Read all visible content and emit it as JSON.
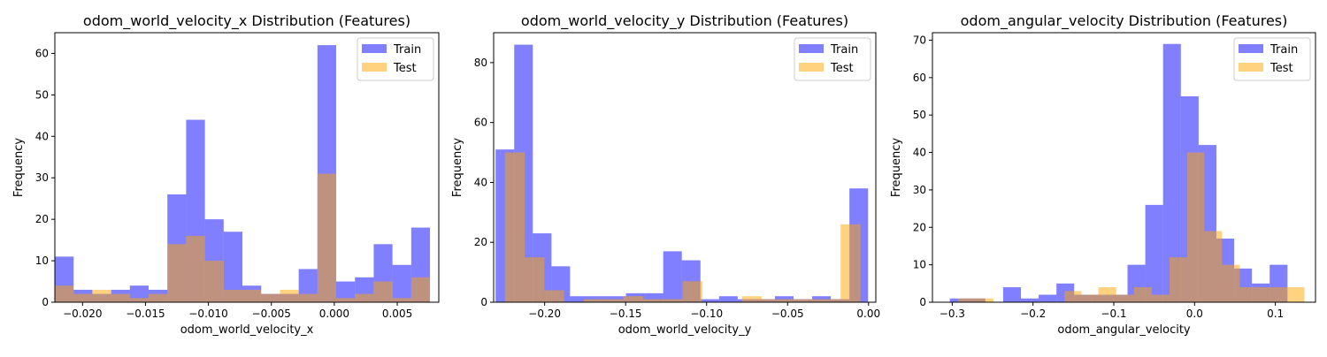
{
  "colors": {
    "train": "#0000ff",
    "test": "#ffa500",
    "train_alpha": 0.5,
    "test_alpha": 0.5
  },
  "chart_data": [
    {
      "type": "bar",
      "title": "odom_world_velocity_x Distribution (Features)",
      "xlabel": "odom_world_velocity_x",
      "ylabel": "Frequency",
      "xlim": [
        -0.0222,
        0.0083
      ],
      "ylim": [
        0,
        65
      ],
      "xticks": [
        -0.02,
        -0.015,
        -0.01,
        -0.005,
        0.0,
        0.005
      ],
      "xtick_labels": [
        "−0.020",
        "−0.015",
        "−0.010",
        "−0.005",
        "0.000",
        "0.005"
      ],
      "yticks": [
        0,
        10,
        20,
        30,
        40,
        50,
        60
      ],
      "legend": {
        "placement": "top-right",
        "entries": [
          "Train",
          "Test"
        ]
      },
      "series": [
        {
          "name": "Train",
          "bins": [
            -0.0222,
            -0.02071,
            -0.01922,
            -0.01773,
            -0.01624,
            -0.01475,
            -0.01326,
            -0.01177,
            -0.01028,
            -0.00879,
            -0.0073,
            -0.00581,
            -0.00432,
            -0.00283,
            -0.00134,
            0.00015,
            0.00164,
            0.00313,
            0.00462,
            0.00611,
            0.0076
          ],
          "values": [
            11,
            3,
            2,
            3,
            4,
            3,
            26,
            44,
            20,
            17,
            4,
            2,
            2,
            8,
            62,
            5,
            6,
            14,
            9,
            18
          ]
        },
        {
          "name": "Test",
          "bins": [
            -0.0222,
            -0.02071,
            -0.01922,
            -0.01773,
            -0.01624,
            -0.01475,
            -0.01326,
            -0.01177,
            -0.01028,
            -0.00879,
            -0.0073,
            -0.00581,
            -0.00432,
            -0.00283,
            -0.00134,
            0.00015,
            0.00164,
            0.00313,
            0.00462,
            0.00611,
            0.0076
          ],
          "values": [
            4,
            2,
            3,
            2,
            1,
            2,
            14,
            16,
            10,
            3,
            3,
            2,
            3,
            2,
            31,
            1,
            2,
            5,
            1,
            6
          ]
        }
      ]
    },
    {
      "type": "bar",
      "title": "odom_world_velocity_y Distribution (Features)",
      "xlabel": "odom_world_velocity_y",
      "ylabel": "Frequency",
      "xlim": [
        -0.2315,
        0.0045
      ],
      "ylim": [
        0,
        90
      ],
      "xticks": [
        -0.2,
        -0.15,
        -0.1,
        -0.05,
        0.0
      ],
      "xtick_labels": [
        "−0.20",
        "−0.15",
        "−0.10",
        "−0.05",
        "0.00"
      ],
      "yticks": [
        0,
        20,
        40,
        60,
        80
      ],
      "legend": {
        "placement": "top-right",
        "entries": [
          "Train",
          "Test"
        ]
      },
      "series": [
        {
          "name": "Train",
          "bins": [
            -0.2303,
            -0.2188,
            -0.2073,
            -0.1958,
            -0.1843,
            -0.1728,
            -0.1613,
            -0.1498,
            -0.1383,
            -0.1268,
            -0.1153,
            -0.1038,
            -0.0923,
            -0.0808,
            -0.0693,
            -0.0578,
            -0.0463,
            -0.0348,
            -0.0233,
            -0.0118,
            -0.0003
          ],
          "values": [
            51,
            86,
            23,
            12,
            2,
            2,
            2,
            3,
            3,
            17,
            14,
            1,
            2,
            1,
            1,
            2,
            1,
            2,
            1,
            38
          ]
        },
        {
          "name": "Test",
          "bins": [
            -0.2246,
            -0.2123,
            -0.2002,
            -0.188,
            -0.1758,
            -0.1636,
            -0.1514,
            -0.1392,
            -0.127,
            -0.1148,
            -0.1026,
            -0.0904,
            -0.0782,
            -0.066,
            -0.0538,
            -0.0416,
            -0.0294,
            -0.0172,
            -0.005
          ],
          "values": [
            50,
            15,
            4,
            0,
            1,
            1,
            2,
            1,
            1,
            7,
            0,
            0,
            2,
            1,
            1,
            1,
            1,
            26
          ]
        }
      ]
    },
    {
      "type": "bar",
      "title": "odom_angular_velocity Distribution (Features)",
      "xlabel": "odom_angular_velocity",
      "ylabel": "Frequency",
      "xlim": [
        -0.3245,
        0.1497
      ],
      "ylim": [
        0,
        72
      ],
      "xticks": [
        -0.3,
        -0.2,
        -0.1,
        0.0,
        0.1
      ],
      "xtick_labels": [
        "−0.3",
        "−0.2",
        "−0.1",
        "0.0",
        "0.1"
      ],
      "yticks": [
        0,
        10,
        20,
        30,
        40,
        50,
        60,
        70
      ],
      "legend": {
        "placement": "top-right",
        "entries": [
          "Train",
          "Test"
        ]
      },
      "series": [
        {
          "name": "Train",
          "bins": [
            -0.303,
            -0.281,
            -0.259,
            -0.237,
            -0.215,
            -0.193,
            -0.171,
            -0.149,
            -0.127,
            -0.105,
            -0.083,
            -0.061,
            -0.039,
            -0.017,
            0.005,
            0.027,
            0.049,
            0.071,
            0.093,
            0.115,
            0.126
          ],
          "values": [
            1,
            1,
            0,
            4,
            1,
            2,
            5,
            2,
            2,
            2,
            10,
            26,
            69,
            55,
            42,
            17,
            9,
            5,
            10,
            0
          ]
        },
        {
          "name": "Test",
          "bins": [
            -0.293,
            -0.271,
            -0.249,
            -0.227,
            -0.205,
            -0.183,
            -0.161,
            -0.14,
            -0.119,
            -0.097,
            -0.075,
            -0.053,
            -0.031,
            -0.009,
            0.012,
            0.034,
            0.056,
            0.078,
            0.1,
            0.121,
            0.136
          ],
          "values": [
            1,
            1,
            0,
            0,
            0,
            0,
            3,
            2,
            4,
            2,
            4,
            2,
            12,
            40,
            19,
            10,
            4,
            4,
            4,
            4
          ]
        }
      ]
    }
  ]
}
